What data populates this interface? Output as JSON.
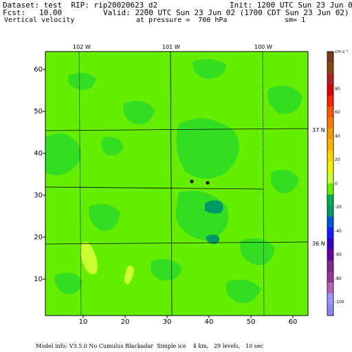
{
  "header": {
    "dataset": "Dataset: test  RIP: rip20020623_d2",
    "init": "Init: 1200 UTC Sun 23 Jun 02",
    "fcst": "Fcst:   10.00",
    "valid": "Valid: 2200 UTC Sun 23 Jun 02 (1700 CDT Sun 23 Jun 02)",
    "field": "Vertical velocity",
    "pressure": "at pressure =  700 hPa",
    "sm": "sm= 1"
  },
  "map": {
    "y_ticks": [
      "60",
      "50",
      "40",
      "30",
      "20",
      "10"
    ],
    "x_ticks": [
      "10",
      "20",
      "30",
      "40",
      "50",
      "60"
    ],
    "lon_labels": [
      "102 W",
      "101 W",
      "100 W"
    ],
    "lat_labels": [
      "37 N",
      "36 N"
    ]
  },
  "colorbar": {
    "units": "cm s⁻¹",
    "labels": [
      "80",
      "60",
      "40",
      "20",
      "0",
      "-20",
      "-40",
      "-60",
      "-80",
      "-100"
    ],
    "colors": [
      "#7a3a1a",
      "#8b4513",
      "#b22222",
      "#dd0000",
      "#ff2200",
      "#ff5500",
      "#ff7a00",
      "#ff9900",
      "#ffb300",
      "#ffd400",
      "#f0f000",
      "#ccff33",
      "#66ee00",
      "#00b050",
      "#009966",
      "#0055dd",
      "#1a1aff",
      "#3300cc",
      "#660099",
      "#7a2a8a",
      "#993399",
      "#b366b3",
      "#9999ff",
      "#8888ee"
    ]
  },
  "footer": "Model info: V3.5.0 No Cumulus Blackadar  Simple ice    4 km,   29 levels,   10 sec"
}
